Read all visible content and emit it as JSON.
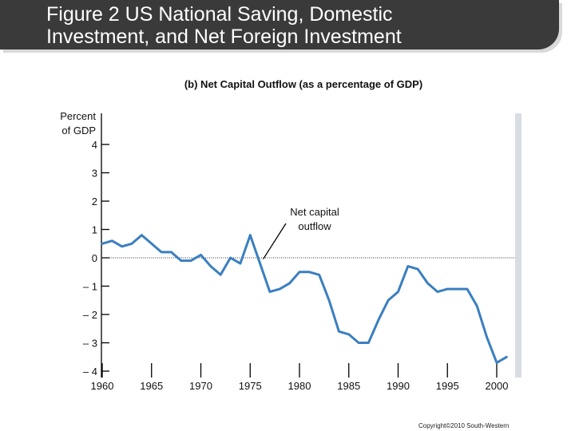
{
  "header": {
    "title_line1": "Figure 2 US National Saving, Domestic",
    "title_line2": "Investment, and Net Foreign Investment"
  },
  "copyright": "Copyright©2010 South-Western",
  "chart_data": {
    "type": "line",
    "title": "(b) Net Capital Outflow (as a percentage of GDP)",
    "ylabel_line1": "Percent",
    "ylabel_line2": "of GDP",
    "xlabel": "",
    "xlim": [
      1960,
      2001
    ],
    "ylim": [
      -4,
      4
    ],
    "x_ticks": [
      1960,
      1965,
      1970,
      1975,
      1980,
      1985,
      1990,
      1995,
      2000
    ],
    "y_ticks": [
      4,
      3,
      2,
      1,
      0,
      -1,
      -2,
      -3,
      -4
    ],
    "y_tick_labels": [
      "4",
      "3",
      "2",
      "1",
      "0",
      "– 1",
      "– 2",
      "– 3",
      "– 4"
    ],
    "x_tick_labels": [
      "1960",
      "1965",
      "1970",
      "1975",
      "1980",
      "1985",
      "1990",
      "1995",
      "2000"
    ],
    "zero_line": "dotted",
    "annotation": {
      "line1": "Net capital",
      "line2": "outflow",
      "target": [
        1976,
        -0.1
      ]
    },
    "series": [
      {
        "color": "#3a7fc0",
        "x": [
          1960,
          1961,
          1962,
          1963,
          1964,
          1965,
          1966,
          1967,
          1968,
          1969,
          1970,
          1971,
          1972,
          1973,
          1974,
          1975,
          1976,
          1977,
          1978,
          1979,
          1980,
          1981,
          1982,
          1983,
          1984,
          1985,
          1986,
          1987,
          1988,
          1989,
          1990,
          1991,
          1992,
          1993,
          1994,
          1995,
          1996,
          1997,
          1998,
          1999,
          2000,
          2001
        ],
        "y": [
          0.5,
          0.6,
          0.4,
          0.5,
          0.8,
          0.5,
          0.2,
          0.2,
          -0.1,
          -0.1,
          0.1,
          -0.3,
          -0.6,
          0.0,
          -0.2,
          0.8,
          -0.2,
          -1.2,
          -1.1,
          -0.9,
          -0.5,
          -0.5,
          -0.6,
          -1.5,
          -2.6,
          -2.7,
          -3.0,
          -3.0,
          -2.2,
          -1.5,
          -1.2,
          -0.3,
          -0.4,
          -0.9,
          -1.2,
          -1.1,
          -1.1,
          -1.1,
          -1.7,
          -2.8,
          -3.7,
          -3.5
        ]
      }
    ]
  }
}
